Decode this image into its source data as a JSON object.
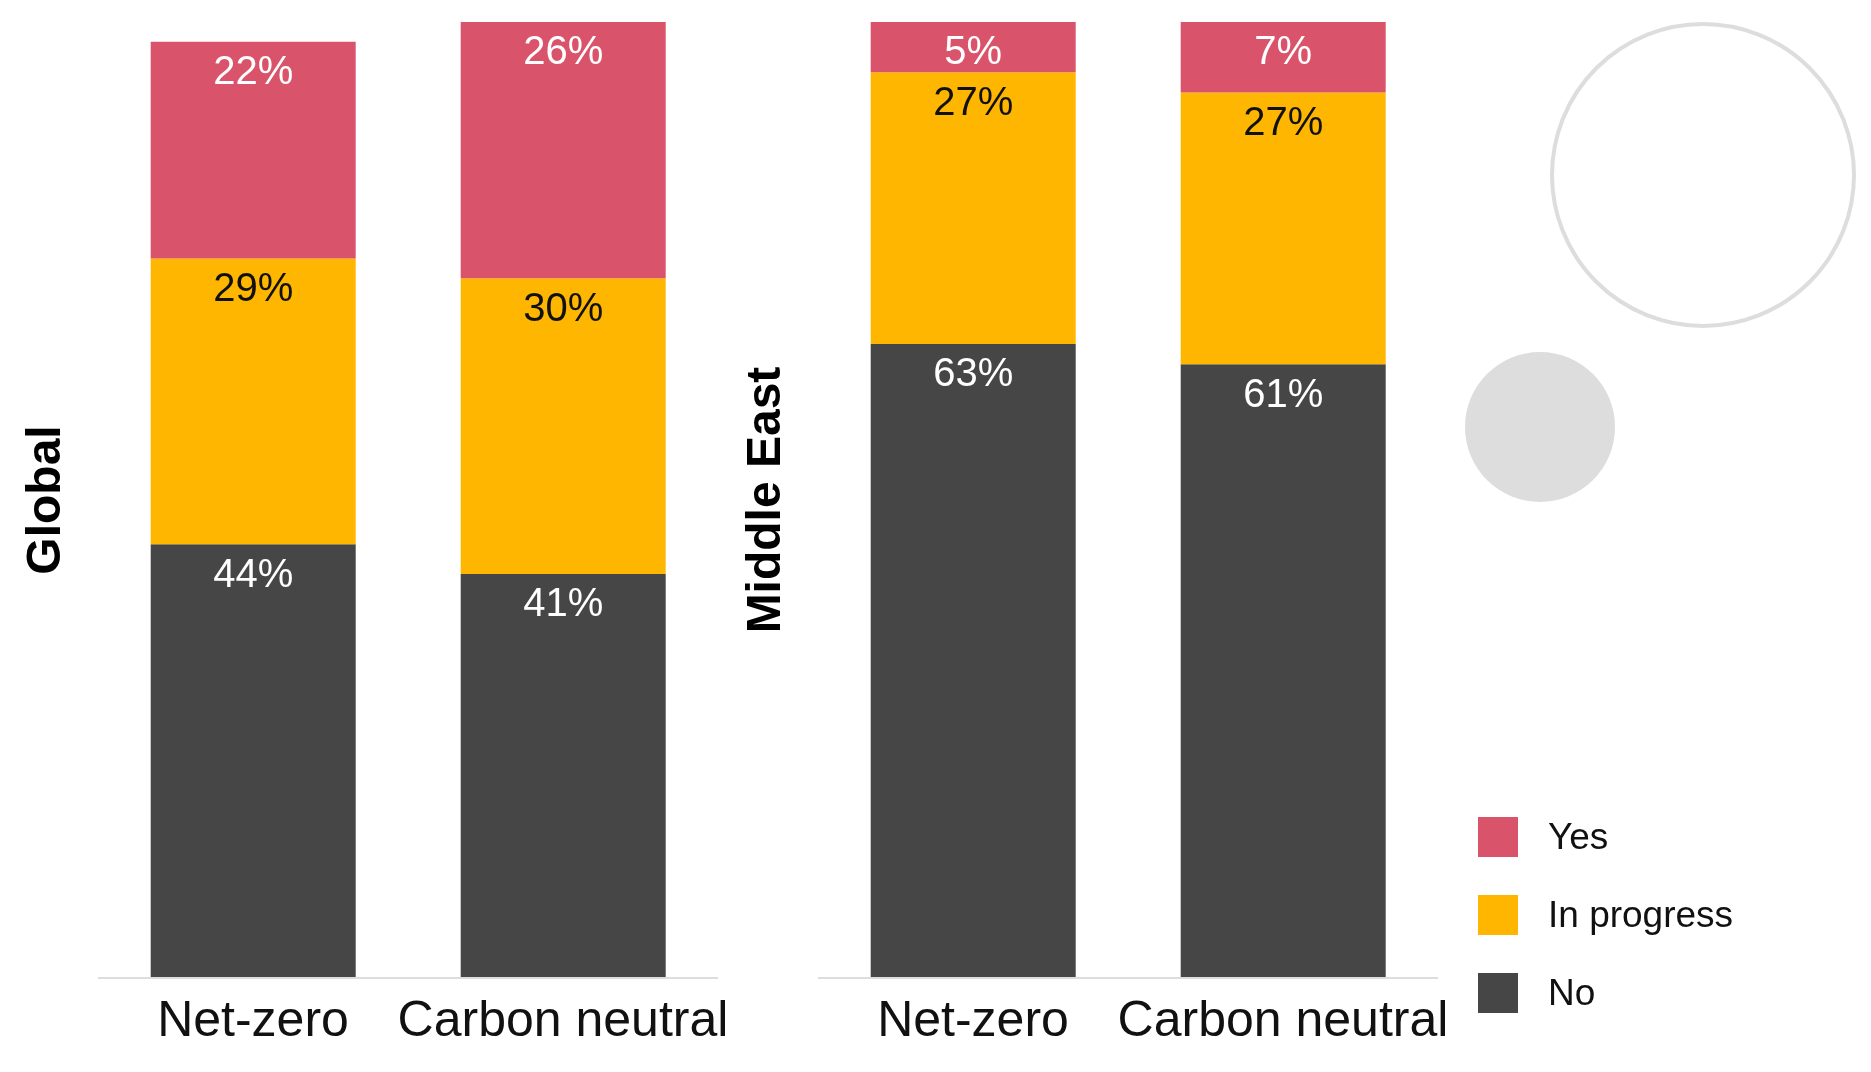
{
  "chart_data": [
    {
      "type": "bar",
      "ylabel": "Global",
      "categories": [
        "Net-zero",
        "Carbon neutral"
      ],
      "stacked": true,
      "legend": false,
      "grid": false,
      "tick_labels": "x",
      "series": [
        {
          "color": "#464646",
          "values": [
            44,
            41
          ],
          "value_labels": [
            "44%",
            "41%"
          ]
        },
        {
          "color": "#ffb600",
          "values": [
            29,
            30
          ],
          "value_labels": [
            "29%",
            "30%"
          ]
        },
        {
          "color": "#d9546b",
          "values": [
            22,
            26
          ],
          "value_labels": [
            "22%",
            "26%"
          ]
        }
      ]
    },
    {
      "type": "bar",
      "ylabel": "Middle East",
      "categories": [
        "Net-zero",
        "Carbon neutral"
      ],
      "stacked": true,
      "legend": "right",
      "grid": false,
      "tick_labels": "x",
      "series": [
        {
          "name": "No",
          "color": "#464646",
          "values": [
            63,
            61
          ],
          "value_labels": [
            "63%",
            "61%"
          ]
        },
        {
          "name": "In progress",
          "color": "#ffb600",
          "values": [
            27,
            27
          ],
          "value_labels": [
            "27%",
            "27%"
          ]
        },
        {
          "name": "Yes",
          "color": "#d9546b",
          "values": [
            5,
            7
          ],
          "value_labels": [
            "5%",
            "7%"
          ]
        }
      ]
    }
  ]
}
